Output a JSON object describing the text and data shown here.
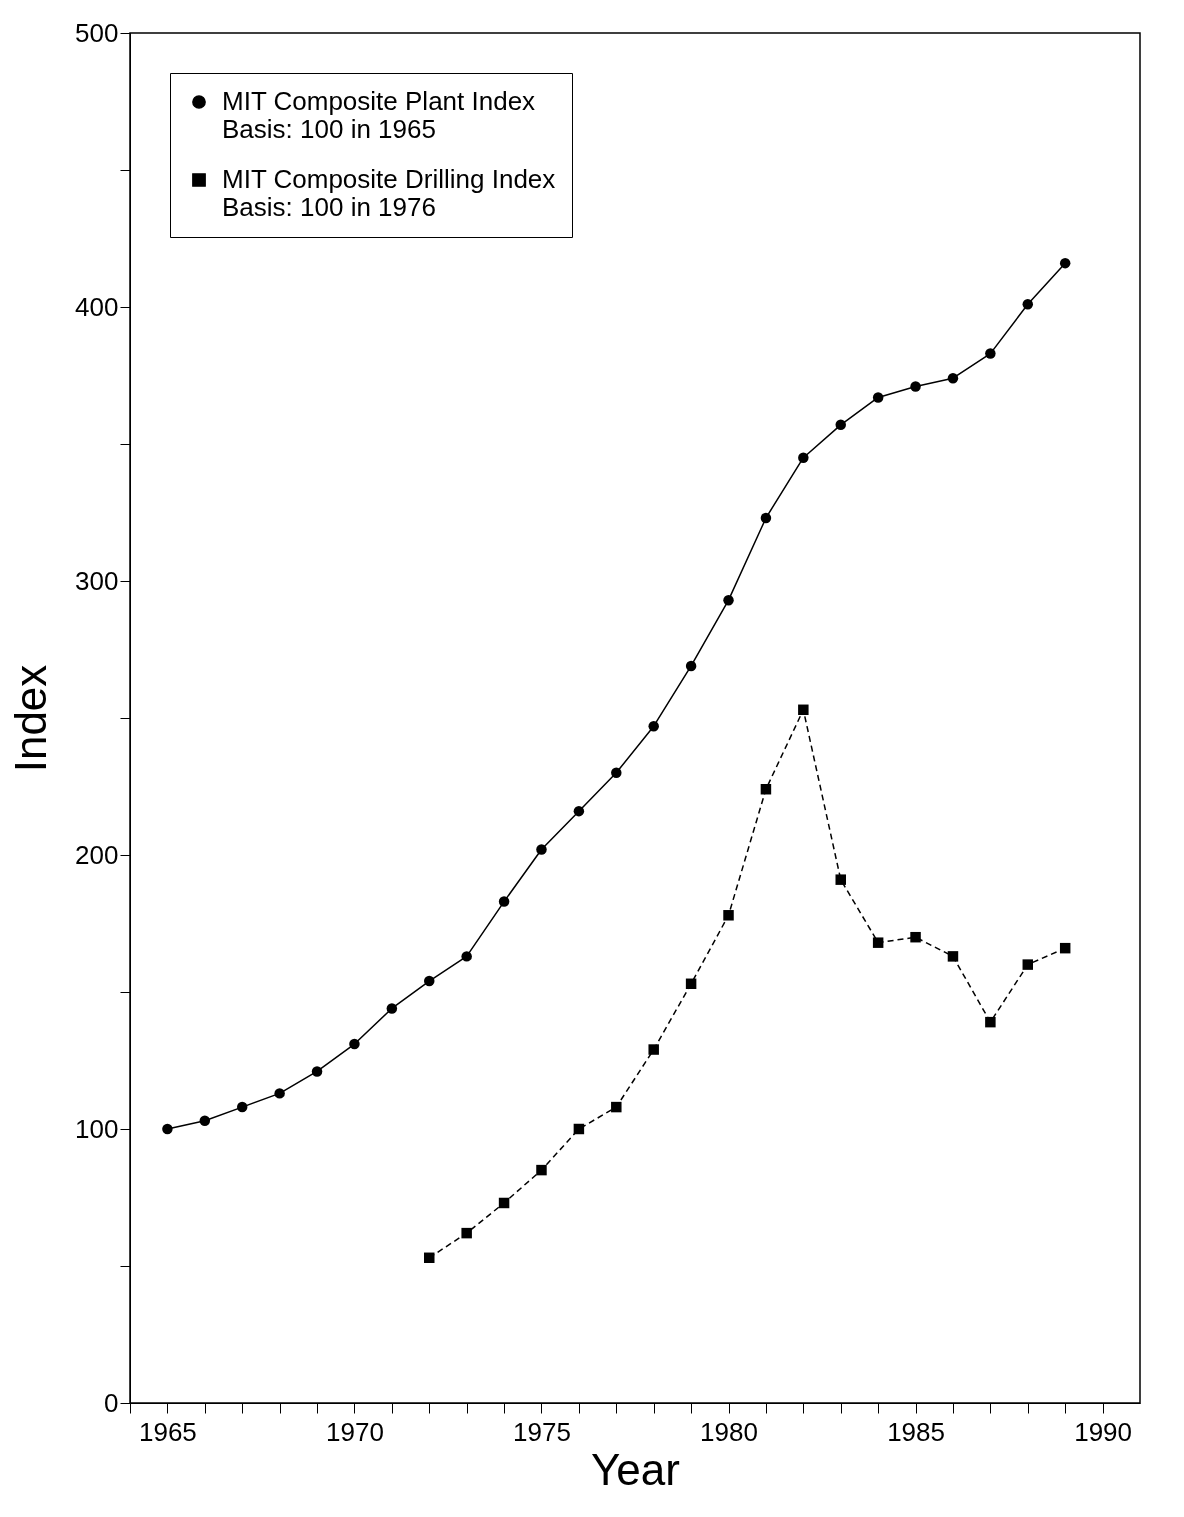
{
  "chart_data": {
    "type": "line",
    "xlabel": "Year",
    "ylabel": "Index",
    "xlim": [
      1964,
      1991
    ],
    "ylim": [
      0,
      500
    ],
    "xticks": [
      {
        "value": 1964,
        "label": null
      },
      1965,
      {
        "value": 1966,
        "label": null
      },
      {
        "value": 1967,
        "label": null
      },
      {
        "value": 1968,
        "label": null
      },
      {
        "value": 1969,
        "label": null
      },
      1970,
      {
        "value": 1971,
        "label": null
      },
      {
        "value": 1972,
        "label": null
      },
      {
        "value": 1973,
        "label": null
      },
      {
        "value": 1974,
        "label": null
      },
      1975,
      {
        "value": 1976,
        "label": null
      },
      {
        "value": 1977,
        "label": null
      },
      {
        "value": 1978,
        "label": null
      },
      {
        "value": 1979,
        "label": null
      },
      1980,
      {
        "value": 1981,
        "label": null
      },
      {
        "value": 1982,
        "label": null
      },
      {
        "value": 1983,
        "label": null
      },
      {
        "value": 1984,
        "label": null
      },
      1985,
      {
        "value": 1986,
        "label": null
      },
      {
        "value": 1987,
        "label": null
      },
      {
        "value": 1988,
        "label": null
      },
      {
        "value": 1989,
        "label": null
      },
      1990
    ],
    "yticks": [
      0,
      {
        "value": 50,
        "label": null
      },
      100,
      {
        "value": 150,
        "label": null
      },
      200,
      {
        "value": 250,
        "label": null
      },
      300,
      {
        "value": 350,
        "label": null
      },
      400,
      {
        "value": 450,
        "label": null
      },
      500
    ],
    "grid": false,
    "legend": "top left",
    "series": [
      {
        "name": "MIT Composite Plant Index\nBasis: 100 in 1965",
        "color": "#000000",
        "marker": "circle",
        "line_style": "solid",
        "x": [
          1965,
          1966,
          1967,
          1968,
          1969,
          1970,
          1971,
          1972,
          1973,
          1974,
          1975,
          1976,
          1977,
          1978,
          1979,
          1980,
          1981,
          1982,
          1983,
          1984,
          1985,
          1986,
          1987,
          1988,
          1989
        ],
        "values": [
          100,
          103,
          108,
          113,
          121,
          131,
          144,
          154,
          163,
          183,
          202,
          216,
          230,
          247,
          269,
          293,
          323,
          345,
          357,
          367,
          371,
          374,
          383,
          401,
          416
        ]
      },
      {
        "name": "MIT Composite Drilling Index\nBasis: 100 in 1976",
        "color": "#000000",
        "marker": "square",
        "line_style": "dashed",
        "x": [
          1972,
          1973,
          1974,
          1975,
          1976,
          1977,
          1978,
          1979,
          1980,
          1981,
          1982,
          1983,
          1984,
          1985,
          1986,
          1987,
          1988,
          1989
        ],
        "values": [
          53,
          62,
          73,
          85,
          100,
          108,
          129,
          153,
          178,
          224,
          253,
          191,
          168,
          170,
          163,
          139,
          160,
          166
        ]
      }
    ]
  }
}
